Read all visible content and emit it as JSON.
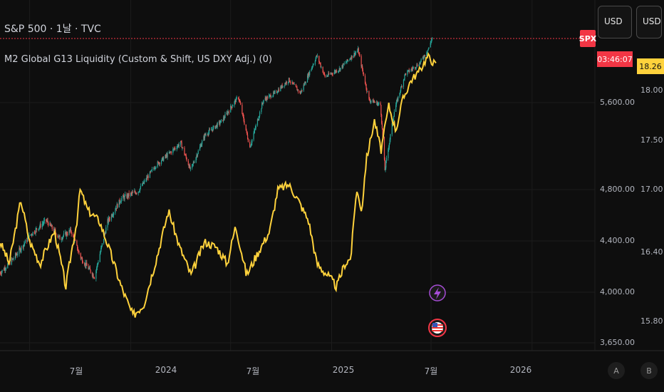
{
  "legend": {
    "title": "S&P 500 · 1날 · TVC",
    "indicator": "M2 Global G13 Liquidity (Custom & Shift, US DXY Adj.) (0)"
  },
  "currency": {
    "left_label": "USD",
    "right_label": "USD"
  },
  "tags": {
    "symbol": "SPX",
    "countdown": "03:46:07",
    "liquidity_value": "18.26"
  },
  "axis_buttons": {
    "a": "A",
    "b": "B"
  },
  "colors": {
    "background": "#0e0e0e",
    "liquidity": "#ffd23c",
    "up": "#26a69a",
    "down": "#ef5350",
    "price_line": "#f23645"
  },
  "icons": [
    "lightning-icon",
    "us-flag-icon"
  ],
  "chart_data": {
    "type": "line",
    "series": [
      {
        "name": "S&P 500",
        "role": "candles",
        "x": [
          "2023-05-08",
          "2023-06-01",
          "2023-07-03",
          "2023-07-31",
          "2023-08-25",
          "2023-09-14",
          "2023-10-02",
          "2023-10-27",
          "2023-11-20",
          "2023-12-15",
          "2024-01-15",
          "2024-02-15",
          "2024-03-15",
          "2024-04-01",
          "2024-04-19",
          "2024-05-15",
          "2024-06-15",
          "2024-07-15",
          "2024-08-05",
          "2024-08-30",
          "2024-09-20",
          "2024-10-15",
          "2024-11-05",
          "2024-12-05",
          "2024-12-20",
          "2025-01-15",
          "2025-02-18",
          "2025-03-10",
          "2025-03-31",
          "2025-04-08",
          "2025-04-25",
          "2025-05-15",
          "2025-06-10",
          "2025-06-27",
          "2025-07-03"
        ],
        "values": [
          4150,
          4260,
          4450,
          4560,
          4420,
          4480,
          4270,
          4120,
          4550,
          4730,
          4790,
          5020,
          5150,
          5230,
          4980,
          5300,
          5430,
          5660,
          5190,
          5630,
          5700,
          5840,
          5700,
          6090,
          5870,
          5950,
          6150,
          5630,
          5580,
          4980,
          5520,
          5900,
          6010,
          6170,
          6280
        ]
      },
      {
        "name": "M2 Global G13 Liquidity (Custom & Shift, US DXY Adj.)",
        "role": "line",
        "x": [
          "2023-05-08",
          "2023-05-25",
          "2023-06-15",
          "2023-07-01",
          "2023-07-20",
          "2023-08-15",
          "2023-09-05",
          "2023-09-25",
          "2023-10-01",
          "2023-10-15",
          "2023-11-05",
          "2023-11-25",
          "2023-12-15",
          "2024-01-05",
          "2024-01-25",
          "2024-02-20",
          "2024-03-10",
          "2024-03-30",
          "2024-04-20",
          "2024-05-15",
          "2024-06-05",
          "2024-06-25",
          "2024-07-10",
          "2024-07-30",
          "2024-08-20",
          "2024-09-10",
          "2024-09-25",
          "2024-10-15",
          "2024-11-01",
          "2024-11-20",
          "2024-12-05",
          "2024-12-25",
          "2025-01-10",
          "2025-01-25",
          "2025-02-05",
          "2025-02-15",
          "2025-02-25",
          "2025-03-05",
          "2025-03-20",
          "2025-04-01",
          "2025-04-15",
          "2025-04-28",
          "2025-05-10",
          "2025-05-25",
          "2025-06-10",
          "2025-06-25",
          "2025-07-03",
          "2025-07-10"
        ],
        "values": [
          16.5,
          16.3,
          16.9,
          16.5,
          16.3,
          16.6,
          16.1,
          16.7,
          17.0,
          16.8,
          16.7,
          16.4,
          16.1,
          15.85,
          15.95,
          16.4,
          16.8,
          16.45,
          16.2,
          16.5,
          16.45,
          16.3,
          16.65,
          16.2,
          16.4,
          16.6,
          17.0,
          17.05,
          16.9,
          16.7,
          16.3,
          16.2,
          16.1,
          16.3,
          16.35,
          17.0,
          16.8,
          17.3,
          17.7,
          17.4,
          17.85,
          17.6,
          17.9,
          18.1,
          18.2,
          18.35,
          18.3,
          18.26
        ]
      }
    ],
    "y_left": {
      "label": "",
      "ticks": [
        3650,
        4000,
        4400,
        4800,
        5600
      ],
      "tick_labels": [
        "3,650.00",
        "4,000.00",
        "4,400.00",
        "4,800.00",
        "5,600.00"
      ]
    },
    "y_right": {
      "label": "",
      "ticks": [
        15.8,
        16.4,
        17.0,
        17.5,
        18.0
      ],
      "tick_labels": [
        "15.80",
        "16.40",
        "17.00",
        "17.50",
        "18.00"
      ]
    },
    "x_ticks": [
      {
        "label": "7월",
        "date": "2023-07-01"
      },
      {
        "label": "2024",
        "date": "2024-01-01"
      },
      {
        "label": "7월",
        "date": "2024-07-01"
      },
      {
        "label": "2025",
        "date": "2025-01-01"
      },
      {
        "label": "7월",
        "date": "2025-07-01"
      },
      {
        "label": "2026",
        "date": "2026-01-01"
      }
    ],
    "current_price_line": 6270,
    "grid": true
  }
}
